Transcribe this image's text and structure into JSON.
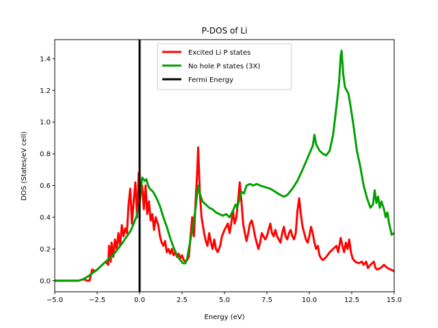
{
  "chart_data": {
    "type": "line",
    "title": "P-DOS of Li",
    "xlabel": "Energy (eV)",
    "ylabel": "DOS (States/eV cell)",
    "xlim": [
      -5.0,
      15.0
    ],
    "ylim": [
      -0.07,
      1.52
    ],
    "xticks": [
      -5.0,
      -2.5,
      0.0,
      2.5,
      5.0,
      7.5,
      10.0,
      12.5,
      15.0
    ],
    "xtick_labels": [
      "−5.0",
      "−2.5",
      "0.0",
      "2.5",
      "5.0",
      "7.5",
      "10.0",
      "12.5",
      "15.0"
    ],
    "yticks": [
      0.0,
      0.2,
      0.4,
      0.6,
      0.8,
      1.0,
      1.2,
      1.4
    ],
    "ytick_labels": [
      "0.0",
      "0.2",
      "0.4",
      "0.6",
      "0.8",
      "1.0",
      "1.2",
      "1.4"
    ],
    "grid": false,
    "legend_position": "top-center",
    "series": [
      {
        "name": "Excited Li P states",
        "color": "#ff0000",
        "points": [
          [
            -5.0,
            0.0
          ],
          [
            -4.0,
            0.0
          ],
          [
            -3.6,
            0.0
          ],
          [
            -3.3,
            0.01
          ],
          [
            -3.1,
            0.0
          ],
          [
            -2.95,
            0.0
          ],
          [
            -2.8,
            0.07
          ],
          [
            -2.6,
            0.06
          ],
          [
            -2.4,
            0.08
          ],
          [
            -2.2,
            0.1
          ],
          [
            -2.0,
            0.12
          ],
          [
            -1.85,
            0.1
          ],
          [
            -1.8,
            0.22
          ],
          [
            -1.7,
            0.12
          ],
          [
            -1.65,
            0.24
          ],
          [
            -1.55,
            0.15
          ],
          [
            -1.45,
            0.26
          ],
          [
            -1.35,
            0.2
          ],
          [
            -1.25,
            0.3
          ],
          [
            -1.15,
            0.22
          ],
          [
            -1.05,
            0.35
          ],
          [
            -0.95,
            0.28
          ],
          [
            -0.85,
            0.33
          ],
          [
            -0.75,
            0.3
          ],
          [
            -0.65,
            0.48
          ],
          [
            -0.55,
            0.58
          ],
          [
            -0.45,
            0.36
          ],
          [
            -0.35,
            0.5
          ],
          [
            -0.25,
            0.62
          ],
          [
            -0.15,
            0.4
          ],
          [
            -0.05,
            0.68
          ],
          [
            0.05,
            0.55
          ],
          [
            0.15,
            0.6
          ],
          [
            0.25,
            0.45
          ],
          [
            0.35,
            0.6
          ],
          [
            0.45,
            0.42
          ],
          [
            0.55,
            0.5
          ],
          [
            0.65,
            0.38
          ],
          [
            0.75,
            0.42
          ],
          [
            0.85,
            0.32
          ],
          [
            0.95,
            0.4
          ],
          [
            1.1,
            0.35
          ],
          [
            1.2,
            0.28
          ],
          [
            1.3,
            0.24
          ],
          [
            1.4,
            0.22
          ],
          [
            1.5,
            0.25
          ],
          [
            1.6,
            0.18
          ],
          [
            1.7,
            0.2
          ],
          [
            1.8,
            0.17
          ],
          [
            1.9,
            0.2
          ],
          [
            2.0,
            0.16
          ],
          [
            2.1,
            0.18
          ],
          [
            2.2,
            0.15
          ],
          [
            2.3,
            0.17
          ],
          [
            2.4,
            0.14
          ],
          [
            2.5,
            0.16
          ],
          [
            2.6,
            0.13
          ],
          [
            2.7,
            0.12
          ],
          [
            2.8,
            0.13
          ],
          [
            2.9,
            0.15
          ],
          [
            3.0,
            0.28
          ],
          [
            3.1,
            0.4
          ],
          [
            3.2,
            0.28
          ],
          [
            3.3,
            0.5
          ],
          [
            3.4,
            0.7
          ],
          [
            3.45,
            0.84
          ],
          [
            3.55,
            0.55
          ],
          [
            3.65,
            0.4
          ],
          [
            3.8,
            0.3
          ],
          [
            3.9,
            0.25
          ],
          [
            4.0,
            0.22
          ],
          [
            4.1,
            0.3
          ],
          [
            4.2,
            0.24
          ],
          [
            4.3,
            0.2
          ],
          [
            4.4,
            0.26
          ],
          [
            4.5,
            0.2
          ],
          [
            4.6,
            0.18
          ],
          [
            4.75,
            0.22
          ],
          [
            4.85,
            0.28
          ],
          [
            5.0,
            0.32
          ],
          [
            5.1,
            0.34
          ],
          [
            5.2,
            0.36
          ],
          [
            5.3,
            0.3
          ],
          [
            5.4,
            0.36
          ],
          [
            5.5,
            0.44
          ],
          [
            5.6,
            0.36
          ],
          [
            5.7,
            0.4
          ],
          [
            5.8,
            0.5
          ],
          [
            5.9,
            0.62
          ],
          [
            6.0,
            0.5
          ],
          [
            6.1,
            0.36
          ],
          [
            6.2,
            0.3
          ],
          [
            6.3,
            0.25
          ],
          [
            6.4,
            0.3
          ],
          [
            6.5,
            0.36
          ],
          [
            6.6,
            0.38
          ],
          [
            6.7,
            0.34
          ],
          [
            6.8,
            0.28
          ],
          [
            6.9,
            0.24
          ],
          [
            7.0,
            0.2
          ],
          [
            7.1,
            0.24
          ],
          [
            7.2,
            0.3
          ],
          [
            7.3,
            0.28
          ],
          [
            7.4,
            0.26
          ],
          [
            7.5,
            0.28
          ],
          [
            7.6,
            0.32
          ],
          [
            7.7,
            0.36
          ],
          [
            7.8,
            0.3
          ],
          [
            7.9,
            0.28
          ],
          [
            8.0,
            0.32
          ],
          [
            8.1,
            0.28
          ],
          [
            8.2,
            0.26
          ],
          [
            8.3,
            0.24
          ],
          [
            8.4,
            0.3
          ],
          [
            8.5,
            0.34
          ],
          [
            8.6,
            0.28
          ],
          [
            8.7,
            0.26
          ],
          [
            8.8,
            0.3
          ],
          [
            8.9,
            0.32
          ],
          [
            9.0,
            0.28
          ],
          [
            9.1,
            0.26
          ],
          [
            9.2,
            0.3
          ],
          [
            9.3,
            0.44
          ],
          [
            9.4,
            0.52
          ],
          [
            9.5,
            0.42
          ],
          [
            9.6,
            0.34
          ],
          [
            9.7,
            0.3
          ],
          [
            9.8,
            0.26
          ],
          [
            9.9,
            0.24
          ],
          [
            10.0,
            0.28
          ],
          [
            10.1,
            0.34
          ],
          [
            10.2,
            0.3
          ],
          [
            10.3,
            0.24
          ],
          [
            10.4,
            0.2
          ],
          [
            10.5,
            0.22
          ],
          [
            10.6,
            0.16
          ],
          [
            10.7,
            0.14
          ],
          [
            10.8,
            0.13
          ],
          [
            11.0,
            0.15
          ],
          [
            11.2,
            0.18
          ],
          [
            11.4,
            0.2
          ],
          [
            11.6,
            0.22
          ],
          [
            11.7,
            0.18
          ],
          [
            11.85,
            0.27
          ],
          [
            11.95,
            0.22
          ],
          [
            12.05,
            0.18
          ],
          [
            12.15,
            0.24
          ],
          [
            12.25,
            0.2
          ],
          [
            12.35,
            0.26
          ],
          [
            12.45,
            0.18
          ],
          [
            12.55,
            0.14
          ],
          [
            12.7,
            0.12
          ],
          [
            12.9,
            0.11
          ],
          [
            13.1,
            0.12
          ],
          [
            13.2,
            0.1
          ],
          [
            13.35,
            0.12
          ],
          [
            13.45,
            0.08
          ],
          [
            13.6,
            0.1
          ],
          [
            13.8,
            0.12
          ],
          [
            13.9,
            0.08
          ],
          [
            14.0,
            0.07
          ],
          [
            14.2,
            0.08
          ],
          [
            14.4,
            0.1
          ],
          [
            14.6,
            0.08
          ],
          [
            14.8,
            0.07
          ],
          [
            15.0,
            0.06
          ]
        ]
      },
      {
        "name": "No hole P states (3X)",
        "color": "#00a000",
        "points": [
          [
            -5.0,
            0.0
          ],
          [
            -4.5,
            0.0
          ],
          [
            -4.0,
            0.0
          ],
          [
            -3.6,
            0.0
          ],
          [
            -3.3,
            0.01
          ],
          [
            -3.0,
            0.03
          ],
          [
            -2.5,
            0.07
          ],
          [
            -2.0,
            0.12
          ],
          [
            -1.5,
            0.17
          ],
          [
            -1.0,
            0.24
          ],
          [
            -0.5,
            0.32
          ],
          [
            -0.2,
            0.4
          ],
          [
            0.0,
            0.48
          ],
          [
            0.1,
            0.6
          ],
          [
            0.15,
            0.65
          ],
          [
            0.3,
            0.63
          ],
          [
            0.4,
            0.64
          ],
          [
            0.5,
            0.6
          ],
          [
            0.6,
            0.58
          ],
          [
            0.8,
            0.56
          ],
          [
            1.0,
            0.52
          ],
          [
            1.2,
            0.47
          ],
          [
            1.4,
            0.4
          ],
          [
            1.6,
            0.34
          ],
          [
            1.8,
            0.27
          ],
          [
            2.0,
            0.21
          ],
          [
            2.2,
            0.16
          ],
          [
            2.4,
            0.13
          ],
          [
            2.55,
            0.11
          ],
          [
            2.7,
            0.11
          ],
          [
            2.8,
            0.14
          ],
          [
            2.9,
            0.2
          ],
          [
            3.0,
            0.26
          ],
          [
            3.1,
            0.32
          ],
          [
            3.2,
            0.38
          ],
          [
            3.3,
            0.46
          ],
          [
            3.45,
            0.6
          ],
          [
            3.55,
            0.55
          ],
          [
            3.7,
            0.5
          ],
          [
            3.9,
            0.48
          ],
          [
            4.1,
            0.46
          ],
          [
            4.3,
            0.45
          ],
          [
            4.5,
            0.43
          ],
          [
            4.7,
            0.42
          ],
          [
            4.9,
            0.41
          ],
          [
            5.1,
            0.42
          ],
          [
            5.3,
            0.4
          ],
          [
            5.5,
            0.44
          ],
          [
            5.65,
            0.48
          ],
          [
            5.75,
            0.46
          ],
          [
            5.85,
            0.5
          ],
          [
            6.0,
            0.56
          ],
          [
            6.15,
            0.55
          ],
          [
            6.3,
            0.6
          ],
          [
            6.5,
            0.61
          ],
          [
            6.7,
            0.6
          ],
          [
            6.9,
            0.61
          ],
          [
            7.1,
            0.6
          ],
          [
            7.4,
            0.59
          ],
          [
            7.7,
            0.58
          ],
          [
            8.0,
            0.56
          ],
          [
            8.3,
            0.54
          ],
          [
            8.5,
            0.53
          ],
          [
            8.7,
            0.54
          ],
          [
            9.0,
            0.58
          ],
          [
            9.3,
            0.63
          ],
          [
            9.6,
            0.7
          ],
          [
            9.8,
            0.75
          ],
          [
            10.0,
            0.8
          ],
          [
            10.2,
            0.85
          ],
          [
            10.3,
            0.92
          ],
          [
            10.4,
            0.86
          ],
          [
            10.6,
            0.82
          ],
          [
            10.8,
            0.8
          ],
          [
            11.0,
            0.79
          ],
          [
            11.2,
            0.82
          ],
          [
            11.4,
            0.92
          ],
          [
            11.6,
            1.1
          ],
          [
            11.75,
            1.25
          ],
          [
            11.85,
            1.42
          ],
          [
            11.9,
            1.45
          ],
          [
            12.0,
            1.3
          ],
          [
            12.1,
            1.22
          ],
          [
            12.3,
            1.18
          ],
          [
            12.4,
            1.12
          ],
          [
            12.5,
            1.05
          ],
          [
            12.6,
            0.98
          ],
          [
            12.7,
            0.9
          ],
          [
            12.8,
            0.82
          ],
          [
            13.0,
            0.72
          ],
          [
            13.2,
            0.6
          ],
          [
            13.4,
            0.52
          ],
          [
            13.6,
            0.46
          ],
          [
            13.75,
            0.48
          ],
          [
            13.85,
            0.57
          ],
          [
            13.95,
            0.49
          ],
          [
            14.05,
            0.53
          ],
          [
            14.15,
            0.46
          ],
          [
            14.25,
            0.5
          ],
          [
            14.4,
            0.45
          ],
          [
            14.5,
            0.4
          ],
          [
            14.6,
            0.43
          ],
          [
            14.7,
            0.36
          ],
          [
            14.85,
            0.29
          ],
          [
            15.0,
            0.3
          ]
        ]
      },
      {
        "name": "Fermi Energy",
        "color": "#000000",
        "vertical_x": 0.0
      }
    ]
  }
}
